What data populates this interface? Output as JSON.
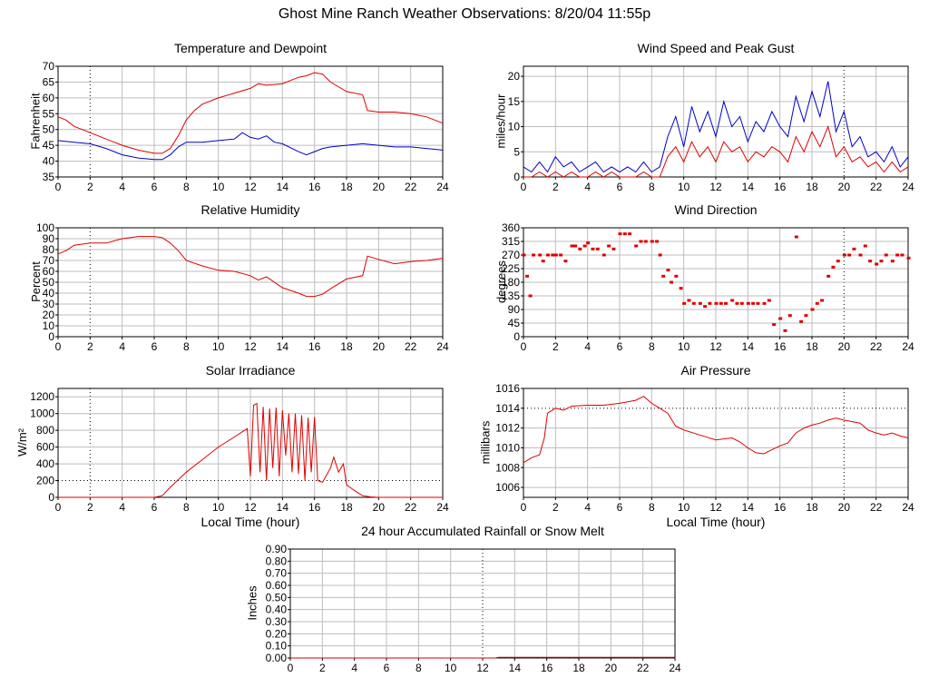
{
  "page": {
    "title": "Ghost Mine Ranch Weather Observations: 8/20/04 11:55p"
  },
  "colors": {
    "red": "#e00000",
    "blue": "#0000c8",
    "grid": "#bdbdbd"
  },
  "chart_data": [
    {
      "id": "temp",
      "type": "line",
      "title": "Temperature and Dewpoint",
      "ylabel": "Fahrenheit",
      "xlabel": "",
      "ylim": [
        35,
        70
      ],
      "yticks": [
        35,
        40,
        45,
        50,
        55,
        60,
        65,
        70
      ],
      "xlim": [
        0,
        24
      ],
      "xticks": [
        0,
        2,
        4,
        6,
        8,
        10,
        12,
        14,
        16,
        18,
        20,
        22,
        24
      ],
      "series": [
        {
          "color": "red",
          "x": [
            0,
            0.5,
            1,
            2,
            3,
            4,
            5,
            6,
            6.5,
            7,
            7.5,
            8,
            8.5,
            9,
            10,
            11,
            12,
            12.5,
            13,
            14,
            15,
            15.5,
            16,
            16.5,
            17,
            18,
            19,
            19.3,
            20,
            21,
            22,
            23,
            24
          ],
          "y": [
            54,
            53,
            51,
            49,
            47,
            45,
            43.5,
            42.5,
            42.5,
            44,
            48,
            53,
            56,
            58,
            60,
            61.5,
            63,
            64.5,
            64,
            64.5,
            66.5,
            67,
            68,
            67.5,
            65,
            62,
            61,
            56,
            55.5,
            55.5,
            55,
            54,
            52
          ]
        },
        {
          "color": "blue",
          "x": [
            0,
            1,
            2,
            3,
            4,
            5,
            6,
            6.5,
            7,
            7.5,
            8,
            9,
            10,
            11,
            11.5,
            12,
            12.5,
            13,
            13.5,
            14,
            15,
            15.5,
            16,
            16.5,
            17,
            18,
            19,
            20,
            21,
            22,
            23,
            24
          ],
          "y": [
            46.5,
            46,
            45.5,
            44,
            42,
            41,
            40.5,
            40.5,
            42,
            44.5,
            46,
            46,
            46.5,
            47,
            49,
            47.5,
            47,
            48,
            46,
            45.5,
            43,
            42,
            43,
            44,
            44.5,
            45,
            45.5,
            45,
            44.5,
            44.5,
            44,
            43.5
          ]
        }
      ]
    },
    {
      "id": "wind",
      "type": "line",
      "title": "Wind Speed and Peak Gust",
      "ylabel": "miles/hour",
      "xlabel": "",
      "ylim": [
        0,
        22
      ],
      "yticks": [
        0,
        5,
        10,
        15,
        20
      ],
      "xlim": [
        0,
        24
      ],
      "xticks": [
        0,
        2,
        4,
        6,
        8,
        10,
        12,
        14,
        16,
        18,
        20,
        22,
        24
      ],
      "series": [
        {
          "color": "blue",
          "x": [
            0,
            0.5,
            1,
            1.5,
            2,
            2.5,
            3,
            3.5,
            4,
            4.5,
            5,
            5.5,
            6,
            6.5,
            7,
            7.5,
            8,
            8.5,
            9,
            9.5,
            10,
            10.5,
            11,
            11.5,
            12,
            12.5,
            13,
            13.5,
            14,
            14.5,
            15,
            15.5,
            16,
            16.5,
            17,
            17.5,
            18,
            18.5,
            19,
            19.5,
            20,
            20.5,
            21,
            21.5,
            22,
            22.5,
            23,
            23.5,
            24
          ],
          "y": [
            2,
            1,
            3,
            1,
            4,
            2,
            3,
            1,
            2,
            3,
            1,
            2,
            1,
            2,
            1,
            3,
            1,
            2,
            8,
            12,
            6,
            14,
            9,
            13,
            8,
            15,
            10,
            12,
            7,
            11,
            9,
            13,
            10,
            8,
            16,
            11,
            17,
            12,
            19,
            9,
            13,
            6,
            8,
            4,
            5,
            3,
            6,
            2,
            4
          ]
        },
        {
          "color": "red",
          "x": [
            0,
            0.5,
            1,
            1.5,
            2,
            2.5,
            3,
            3.5,
            4,
            4.5,
            5,
            5.5,
            6,
            6.5,
            7,
            7.5,
            8,
            8.5,
            9,
            9.5,
            10,
            10.5,
            11,
            11.5,
            12,
            12.5,
            13,
            13.5,
            14,
            14.5,
            15,
            15.5,
            16,
            16.5,
            17,
            17.5,
            18,
            18.5,
            19,
            19.5,
            20,
            20.5,
            21,
            21.5,
            22,
            22.5,
            23,
            23.5,
            24
          ],
          "y": [
            0,
            0,
            1,
            0,
            1,
            0,
            1,
            0,
            0,
            1,
            0,
            1,
            0,
            0,
            0,
            1,
            0,
            0,
            4,
            6,
            3,
            7,
            4,
            6,
            3,
            7,
            5,
            6,
            3,
            5,
            4,
            6,
            5,
            3,
            8,
            5,
            9,
            6,
            10,
            4,
            6,
            3,
            4,
            2,
            3,
            1,
            3,
            1,
            2
          ]
        }
      ]
    },
    {
      "id": "rh",
      "type": "line",
      "title": "Relative Humidity",
      "ylabel": "Percent",
      "xlabel": "",
      "ylim": [
        0,
        100
      ],
      "yticks": [
        0,
        10,
        20,
        30,
        40,
        50,
        60,
        70,
        80,
        90,
        100
      ],
      "xlim": [
        0,
        24
      ],
      "xticks": [
        0,
        2,
        4,
        6,
        8,
        10,
        12,
        14,
        16,
        18,
        20,
        22,
        24
      ],
      "series": [
        {
          "color": "red",
          "x": [
            0,
            0.5,
            1,
            2,
            3,
            4,
            5,
            6,
            6.5,
            7,
            7.5,
            8,
            9,
            10,
            11,
            12,
            12.5,
            13,
            14,
            15,
            15.5,
            16,
            16.5,
            17,
            18,
            19,
            19.3,
            20,
            21,
            22,
            23,
            24
          ],
          "y": [
            76,
            79,
            84,
            86,
            86,
            90,
            92,
            92,
            91,
            86,
            79,
            70,
            65,
            61,
            60,
            56,
            52,
            55,
            45,
            40,
            37,
            37,
            39,
            44,
            53,
            56,
            74,
            71,
            67,
            69,
            70,
            72
          ]
        }
      ]
    },
    {
      "id": "wdir",
      "type": "scatter",
      "title": "Wind Direction",
      "ylabel": "degrees",
      "xlabel": "",
      "ylim": [
        0,
        360
      ],
      "yticks": [
        0,
        45,
        90,
        135,
        180,
        225,
        270,
        315,
        360
      ],
      "xlim": [
        0,
        24
      ],
      "xticks": [
        0,
        2,
        4,
        6,
        8,
        10,
        12,
        14,
        16,
        18,
        20,
        22,
        24
      ],
      "series": [
        {
          "color": "red",
          "x": [
            0,
            0.2,
            0.4,
            0.6,
            1,
            1.2,
            1.5,
            1.8,
            2,
            2.3,
            2.6,
            3,
            3.2,
            3.5,
            3.8,
            4,
            4.3,
            4.6,
            5,
            5.3,
            5.6,
            6,
            6.3,
            6.6,
            7,
            7.3,
            7.6,
            8,
            8.3,
            8.5,
            8.7,
            9,
            9.2,
            9.5,
            9.8,
            10,
            10.3,
            10.6,
            11,
            11.3,
            11.6,
            12,
            12.3,
            12.6,
            13,
            13.3,
            13.6,
            14,
            14.3,
            14.6,
            15,
            15.3,
            15.6,
            16,
            16.3,
            16.6,
            17,
            17.3,
            17.6,
            18,
            18.3,
            18.6,
            19,
            19.3,
            19.6,
            20,
            20.3,
            20.6,
            21,
            21.3,
            21.6,
            22,
            22.3,
            22.6,
            23,
            23.3,
            23.6,
            24
          ],
          "y": [
            270,
            200,
            135,
            270,
            270,
            250,
            270,
            270,
            270,
            270,
            250,
            300,
            300,
            290,
            300,
            310,
            290,
            290,
            270,
            300,
            290,
            340,
            340,
            340,
            300,
            315,
            315,
            315,
            315,
            270,
            200,
            220,
            180,
            200,
            160,
            110,
            120,
            110,
            110,
            100,
            110,
            110,
            110,
            110,
            120,
            110,
            110,
            110,
            110,
            110,
            110,
            120,
            40,
            60,
            20,
            70,
            330,
            50,
            70,
            90,
            110,
            120,
            200,
            230,
            250,
            270,
            270,
            290,
            270,
            300,
            250,
            240,
            250,
            270,
            250,
            270,
            270,
            260
          ]
        }
      ]
    },
    {
      "id": "solar",
      "type": "line",
      "title": "Solar Irradiance",
      "ylabel": "W/m²",
      "xlabel": "Local Time (hour)",
      "ylim": [
        0,
        1300
      ],
      "yticks": [
        0,
        200,
        400,
        600,
        800,
        1000,
        1200
      ],
      "xlim": [
        0,
        24
      ],
      "xticks": [
        0,
        2,
        4,
        6,
        8,
        10,
        12,
        14,
        16,
        18,
        20,
        22,
        24
      ],
      "series": [
        {
          "color": "red",
          "x": [
            0,
            6,
            6.5,
            7,
            8,
            9,
            10,
            11,
            11.8,
            12,
            12.2,
            12.4,
            12.6,
            12.8,
            13,
            13.2,
            13.4,
            13.6,
            13.8,
            14,
            14.2,
            14.4,
            14.6,
            14.8,
            15,
            15.2,
            15.4,
            15.6,
            15.8,
            16,
            16.2,
            16.5,
            17,
            17.2,
            17.5,
            17.8,
            18,
            18.5,
            19,
            19.5,
            20,
            24
          ],
          "y": [
            0,
            0,
            20,
            120,
            300,
            450,
            600,
            720,
            820,
            250,
            1100,
            1120,
            300,
            1080,
            200,
            1060,
            350,
            1070,
            250,
            1040,
            500,
            1000,
            300,
            1000,
            280,
            980,
            200,
            950,
            300,
            960,
            200,
            180,
            350,
            480,
            300,
            400,
            150,
            80,
            20,
            5,
            0,
            0
          ]
        }
      ]
    },
    {
      "id": "pressure",
      "type": "line",
      "title": "Air Pressure",
      "ylabel": "millibars",
      "xlabel": "Local Time (hour)",
      "ylim": [
        1005,
        1016
      ],
      "yticks": [
        1006,
        1008,
        1010,
        1012,
        1014,
        1016
      ],
      "xlim": [
        0,
        24
      ],
      "xticks": [
        0,
        2,
        4,
        6,
        8,
        10,
        12,
        14,
        16,
        18,
        20,
        22,
        24
      ],
      "series": [
        {
          "color": "red",
          "x": [
            0,
            0.5,
            1,
            1.3,
            1.5,
            2,
            2.5,
            3,
            4,
            5,
            6,
            7,
            7.5,
            8,
            8.5,
            9,
            9.5,
            10,
            11,
            12,
            13,
            13.5,
            14,
            14.5,
            15,
            15.5,
            16,
            16.5,
            17,
            17.5,
            18,
            18.5,
            19,
            19.5,
            20,
            21,
            21.5,
            22,
            22.5,
            23,
            23.5,
            24
          ],
          "y": [
            1008.5,
            1009,
            1009.3,
            1011,
            1013.5,
            1014,
            1013.8,
            1014.2,
            1014.3,
            1014.3,
            1014.5,
            1014.8,
            1015.2,
            1014.5,
            1014,
            1013.5,
            1012.2,
            1011.8,
            1011.3,
            1010.8,
            1011,
            1010.6,
            1010,
            1009.5,
            1009.4,
            1009.8,
            1010.2,
            1010.5,
            1011.5,
            1012,
            1012.3,
            1012.5,
            1012.8,
            1013,
            1012.8,
            1012.5,
            1011.8,
            1011.5,
            1011.3,
            1011.5,
            1011.2,
            1011
          ]
        }
      ]
    },
    {
      "id": "rain",
      "type": "line",
      "title": "24 hour Accumulated Rainfall or Snow Melt",
      "ylabel": "Inches",
      "xlabel": "",
      "ylim": [
        0,
        0.9
      ],
      "yticks": [
        0.0,
        0.1,
        0.2,
        0.3,
        0.4,
        0.5,
        0.6,
        0.7,
        0.8,
        0.9
      ],
      "xlim": [
        0,
        24
      ],
      "xticks": [
        0,
        2,
        4,
        6,
        8,
        10,
        12,
        14,
        16,
        18,
        20,
        22,
        24
      ],
      "series": [
        {
          "color": "red",
          "x": [
            0,
            12.8,
            13,
            24
          ],
          "y": [
            0,
            0,
            0.005,
            0.005
          ]
        }
      ]
    }
  ]
}
